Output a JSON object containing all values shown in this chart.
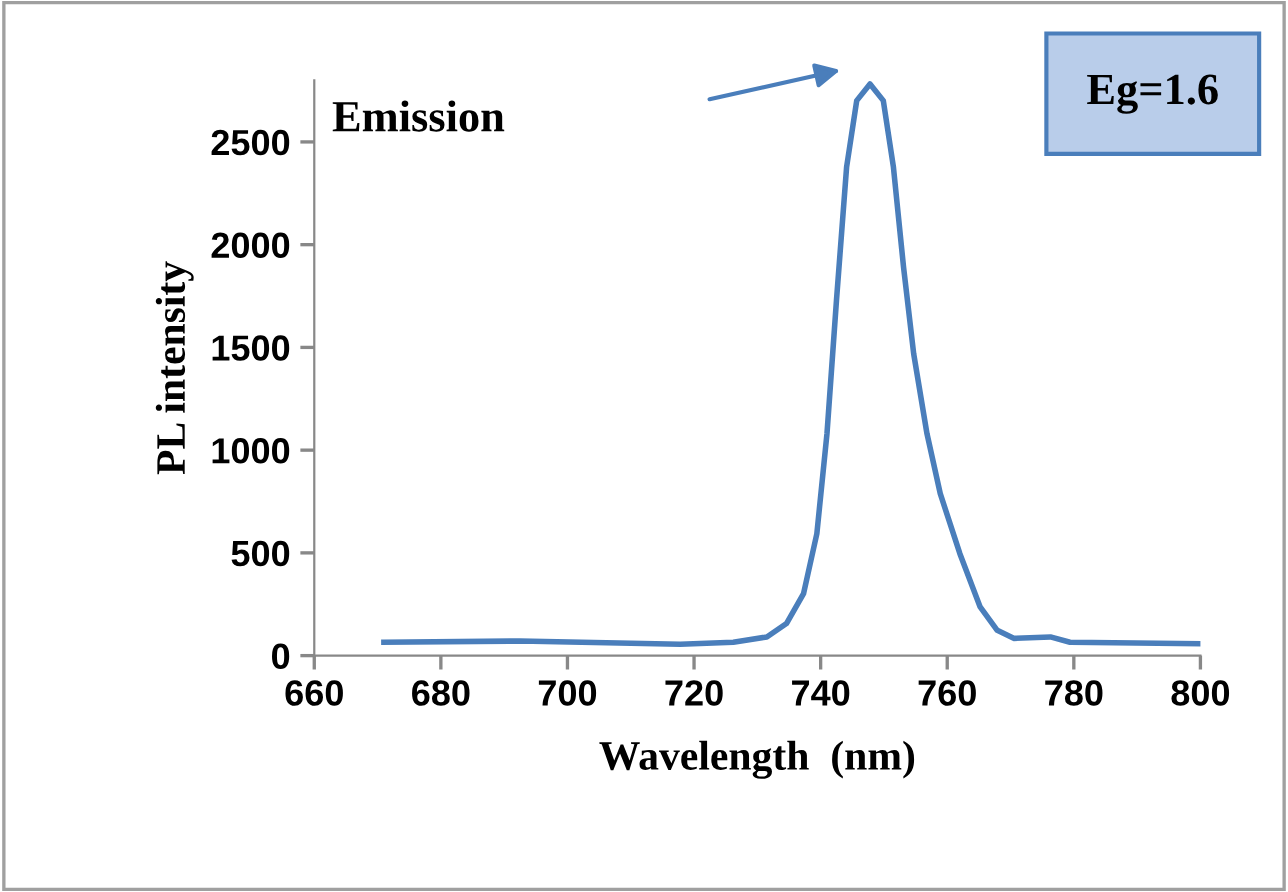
{
  "chart_data": {
    "type": "line",
    "xlabel": "Wavelength  (nm)",
    "ylabel": "PL intensity",
    "x": [
      671,
      692.5,
      717.8,
      726.2,
      731.5,
      734.6,
      737.3,
      739.4,
      741,
      742.5,
      744.1,
      745.7,
      747.8,
      749.9,
      751.5,
      753.1,
      754.7,
      756.8,
      758.9,
      762,
      765.2,
      767.9,
      770.5,
      776.3,
      779.4,
      800
    ],
    "series": [
      {
        "color": "#4a7ebb",
        "values": [
          65,
          71,
          55,
          65,
          91,
          156,
          302,
          593,
          1080,
          1728,
          2377,
          2701,
          2782,
          2701,
          2377,
          1890,
          1469,
          1080,
          788,
          496,
          237,
          123,
          84,
          91,
          65,
          58
        ]
      }
    ],
    "xlim": [
      660,
      800
    ],
    "xticks": [
      660,
      680,
      700,
      720,
      740,
      760,
      780,
      800
    ],
    "ylim": [
      0,
      2800
    ],
    "yticks": [
      0,
      500,
      1000,
      1500,
      2000,
      2500
    ],
    "grid": false,
    "legend": false,
    "marker": "none",
    "line_style": "solid",
    "annotations": [
      "Emission",
      "Eg=1.6"
    ]
  }
}
